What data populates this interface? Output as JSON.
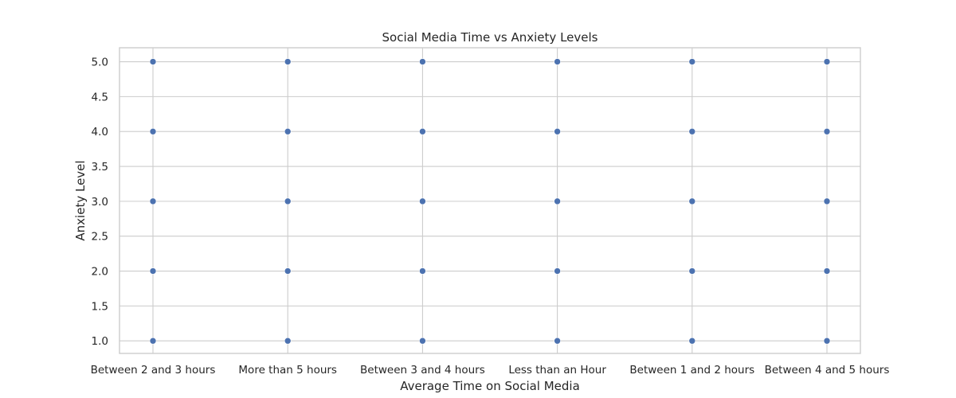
{
  "chart_data": {
    "type": "scatter",
    "title": "Social Media Time vs Anxiety Levels",
    "xlabel": "Average Time on Social Media",
    "ylabel": "Anxiety Level",
    "categories": [
      "Between 2 and 3 hours",
      "More than 5 hours",
      "Between 3 and 4 hours",
      "Less than an Hour",
      "Between 1 and 2 hours",
      "Between 4 and 5 hours"
    ],
    "y_ticks": [
      "1.0",
      "1.5",
      "2.0",
      "2.5",
      "3.0",
      "3.5",
      "4.0",
      "4.5",
      "5.0"
    ],
    "ylim": [
      0.82,
      5.2
    ],
    "grid": true,
    "points": [
      {
        "x": "Between 2 and 3 hours",
        "y": 1
      },
      {
        "x": "Between 2 and 3 hours",
        "y": 2
      },
      {
        "x": "Between 2 and 3 hours",
        "y": 3
      },
      {
        "x": "Between 2 and 3 hours",
        "y": 4
      },
      {
        "x": "Between 2 and 3 hours",
        "y": 5
      },
      {
        "x": "More than 5 hours",
        "y": 1
      },
      {
        "x": "More than 5 hours",
        "y": 2
      },
      {
        "x": "More than 5 hours",
        "y": 3
      },
      {
        "x": "More than 5 hours",
        "y": 4
      },
      {
        "x": "More than 5 hours",
        "y": 5
      },
      {
        "x": "Between 3 and 4 hours",
        "y": 1
      },
      {
        "x": "Between 3 and 4 hours",
        "y": 2
      },
      {
        "x": "Between 3 and 4 hours",
        "y": 3
      },
      {
        "x": "Between 3 and 4 hours",
        "y": 4
      },
      {
        "x": "Between 3 and 4 hours",
        "y": 5
      },
      {
        "x": "Less than an Hour",
        "y": 1
      },
      {
        "x": "Less than an Hour",
        "y": 2
      },
      {
        "x": "Less than an Hour",
        "y": 3
      },
      {
        "x": "Less than an Hour",
        "y": 4
      },
      {
        "x": "Less than an Hour",
        "y": 5
      },
      {
        "x": "Between 1 and 2 hours",
        "y": 1
      },
      {
        "x": "Between 1 and 2 hours",
        "y": 2
      },
      {
        "x": "Between 1 and 2 hours",
        "y": 3
      },
      {
        "x": "Between 1 and 2 hours",
        "y": 4
      },
      {
        "x": "Between 1 and 2 hours",
        "y": 5
      },
      {
        "x": "Between 4 and 5 hours",
        "y": 1
      },
      {
        "x": "Between 4 and 5 hours",
        "y": 2
      },
      {
        "x": "Between 4 and 5 hours",
        "y": 3
      },
      {
        "x": "Between 4 and 5 hours",
        "y": 4
      },
      {
        "x": "Between 4 and 5 hours",
        "y": 5
      }
    ],
    "colors": {
      "point": "#4c72b0",
      "grid": "#cccccc"
    }
  }
}
